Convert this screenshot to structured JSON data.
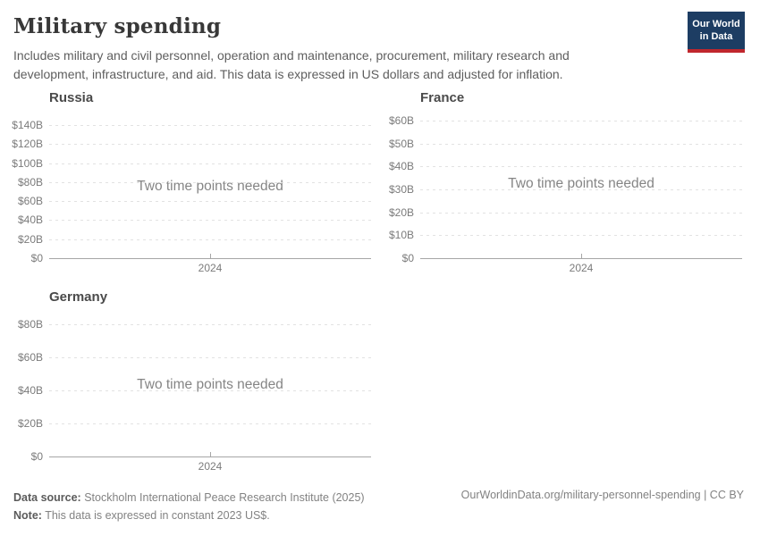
{
  "header": {
    "title": "Military spending",
    "subtitle": "Includes military and civil personnel, operation and maintenance, procurement, military research and development, infrastructure, and aid. This data is expressed in US dollars and adjusted for inflation.",
    "logo": {
      "line1": "Our World",
      "line2": "in Data",
      "bg_color": "#1d3d63",
      "accent_color": "#c0272d"
    }
  },
  "chart_data": [
    {
      "type": "line",
      "title": "Russia",
      "placeholder": "Two time points needed",
      "series": [],
      "x_ticks": [
        "2024"
      ],
      "y_ticks": [
        "$140B",
        "$120B",
        "$100B",
        "$80B",
        "$60B",
        "$40B",
        "$20B",
        "$0"
      ],
      "ylim_billion_usd": [
        0,
        140
      ],
      "grid": true,
      "unit": "constant 2023 US$"
    },
    {
      "type": "line",
      "title": "France",
      "placeholder": "Two time points needed",
      "series": [],
      "x_ticks": [
        "2024"
      ],
      "y_ticks": [
        "$60B",
        "$50B",
        "$40B",
        "$30B",
        "$20B",
        "$10B",
        "$0"
      ],
      "ylim_billion_usd": [
        0,
        60
      ],
      "grid": true,
      "unit": "constant 2023 US$"
    },
    {
      "type": "line",
      "title": "Germany",
      "placeholder": "Two time points needed",
      "series": [],
      "x_ticks": [
        "2024"
      ],
      "y_ticks": [
        "$80B",
        "$60B",
        "$40B",
        "$20B",
        "$0"
      ],
      "ylim_billion_usd": [
        0,
        80
      ],
      "grid": true,
      "unit": "constant 2023 US$"
    }
  ],
  "footer": {
    "source_label": "Data source:",
    "source_text": " Stockholm International Peace Research Institute (2025)",
    "note_label": "Note:",
    "note_text": " This data is expressed in constant 2023 US$.",
    "attribution": "OurWorldinData.org/military-personnel-spending | CC BY"
  }
}
